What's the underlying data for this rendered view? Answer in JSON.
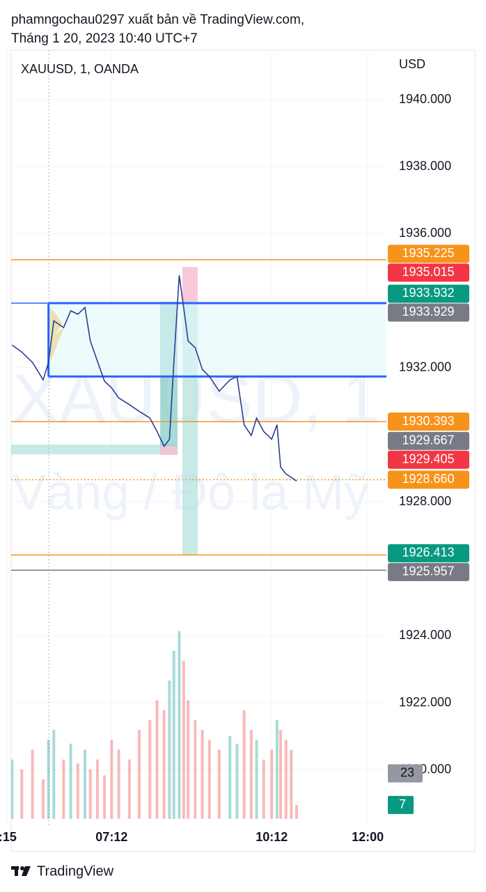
{
  "chart_data": {
    "type": "line",
    "publisher": "phamngochau0297 xuất bản về TradingView.com,",
    "published": "Tháng 1 20, 2023 10:40 UTC+7",
    "title": "XAUUSD, 1, OANDA",
    "currency": "USD",
    "watermark": [
      "XAUUSD, 1",
      "Vàng / Đô la Mỹ"
    ],
    "brand": "TradingView",
    "x": [
      320,
      331,
      343,
      355,
      361,
      367,
      378,
      386,
      394,
      402,
      408,
      416,
      424,
      432,
      440,
      452,
      463,
      475,
      483,
      491,
      497,
      502,
      508,
      513,
      518,
      526,
      534,
      542,
      553,
      565,
      573,
      581,
      589,
      595,
      603,
      612,
      618,
      622,
      628,
      634,
      640
    ],
    "series": [
      {
        "color": "#2b3d8f",
        "values": [
          1932.68,
          1932.47,
          1932.16,
          1931.64,
          1932.16,
          1933.4,
          1933.2,
          1933.7,
          1933.6,
          1933.8,
          1932.8,
          1932.2,
          1931.6,
          1931.4,
          1931.1,
          1930.9,
          1930.7,
          1930.5,
          1930.1,
          1929.66,
          1929.87,
          1932.16,
          1934.76,
          1933.8,
          1932.8,
          1932.6,
          1931.95,
          1931.74,
          1931.3,
          1931.64,
          1931.74,
          1930.3,
          1929.98,
          1930.5,
          1930.1,
          1929.87,
          1930.3,
          1929.04,
          1928.83,
          1928.73,
          1928.62
        ]
      }
    ],
    "xlim": [
      319,
      741
    ],
    "xticks": [
      {
        "value": 315,
        "label": ":15"
      },
      {
        "value": 432,
        "label": "07:12"
      },
      {
        "value": 612,
        "label": "10:12"
      },
      {
        "value": 720,
        "label": "12:00"
      }
    ],
    "ylim": [
      1918.33,
      1941.48
    ],
    "yticks": [
      {
        "value": 1940,
        "label": "1940.000"
      },
      {
        "value": 1938,
        "label": "1938.000"
      },
      {
        "value": 1936,
        "label": "1936.000"
      },
      {
        "value": 1932,
        "label": "1932.000"
      },
      {
        "value": 1928,
        "label": "1928.000"
      },
      {
        "value": 1924,
        "label": "1924.000"
      },
      {
        "value": 1922,
        "label": "1922.000"
      },
      {
        "value": 1920,
        "label": "1920.000"
      }
    ],
    "grid": true,
    "price_labels": [
      {
        "value": 1935.225,
        "label": "1935.225",
        "color": "#f7931a",
        "line": "solid"
      },
      {
        "value": 1935.015,
        "label": "1935.015",
        "color": "#f23645"
      },
      {
        "value": 1933.932,
        "label": "1933.932",
        "color": "#089981"
      },
      {
        "value": 1933.929,
        "label": "1933.929",
        "color": "#787b86",
        "line": "solid",
        "line_color": "#2962ff"
      },
      {
        "value": 1930.393,
        "label": "1930.393",
        "color": "#f7931a",
        "line": "solid"
      },
      {
        "value": 1929.667,
        "label": "1929.667",
        "color": "#787b86"
      },
      {
        "value": 1929.405,
        "label": "1929.405",
        "color": "#f23645"
      },
      {
        "value": 1928.66,
        "label": "1928.660",
        "color": "#f7931a",
        "line": "dotted"
      },
      {
        "value": 1926.413,
        "label": "1926.413",
        "color": "#089981",
        "line": "solid",
        "line_color": "#f7931a"
      },
      {
        "value": 1925.957,
        "label": "1925.957",
        "color": "#787b86",
        "line": "solid"
      }
    ],
    "range_box": {
      "top": 1933.929,
      "bottom": 1931.74,
      "x_start": 361,
      "color": "#2962ff"
    },
    "volume": {
      "ylim": [
        0,
        97
      ],
      "values": [
        30,
        25,
        35,
        20,
        40,
        45,
        30,
        38,
        28,
        35,
        25,
        30,
        22,
        40,
        35,
        30,
        45,
        50,
        60,
        55,
        70,
        85,
        95,
        80,
        60,
        50,
        45,
        40,
        35,
        42,
        38,
        55,
        45,
        40,
        30,
        35,
        50,
        45,
        40,
        35,
        7
      ],
      "ma": 23
    }
  }
}
